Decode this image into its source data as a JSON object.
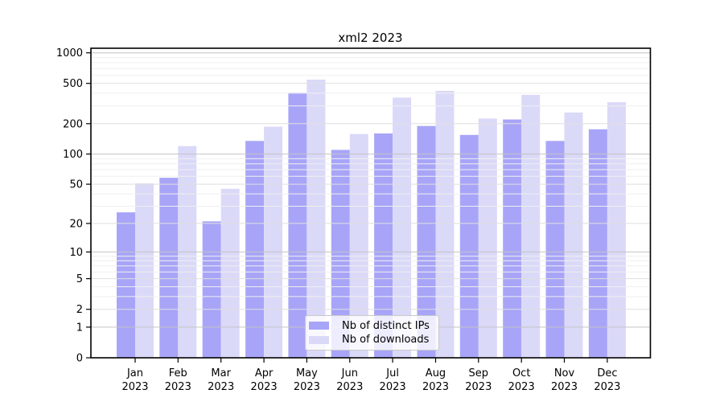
{
  "figure": {
    "title": "xml2 2023"
  },
  "chart_data": {
    "type": "bar",
    "title": "xml2 2023",
    "yscale": "log1p",
    "grid": true,
    "categories": [
      "Jan",
      "Feb",
      "Mar",
      "Apr",
      "May",
      "Jun",
      "Jul",
      "Aug",
      "Sep",
      "Oct",
      "Nov",
      "Dec"
    ],
    "x_tick_second_line": "2023",
    "series": [
      {
        "name": "Nb of distinct IPs",
        "color": "#a8a5f8",
        "values": [
          26,
          58,
          21,
          135,
          405,
          110,
          160,
          190,
          155,
          220,
          135,
          176
        ]
      },
      {
        "name": "Nb of downloads",
        "color": "#dbd9f8",
        "values": [
          51,
          120,
          45,
          187,
          545,
          158,
          362,
          422,
          225,
          385,
          258,
          326
        ]
      }
    ],
    "ytick_labels": [
      "1000",
      "500",
      "200",
      "100",
      "50",
      "20",
      "10",
      "5",
      "2",
      "1",
      "0"
    ],
    "ytick_values": [
      1000,
      500,
      200,
      100,
      50,
      20,
      10,
      5,
      2,
      1,
      0
    ],
    "ylim": [
      0,
      1120
    ],
    "legend_position": "lower center",
    "grid_colors": {
      "major": "#c4c4c4",
      "mid": "#dfdfdf",
      "minor": "#efefef"
    }
  }
}
